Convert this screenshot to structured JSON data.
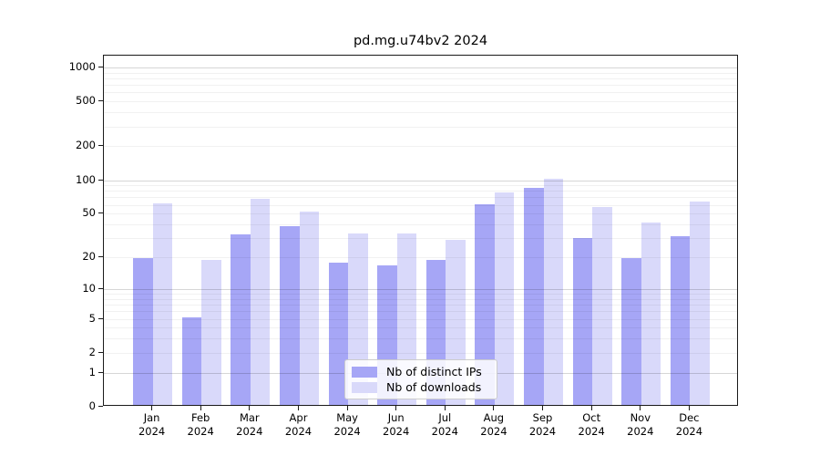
{
  "chart_data": {
    "type": "bar",
    "title": "pd.mg.u74bv2 2024",
    "categories": [
      "Jan 2024",
      "Feb 2024",
      "Mar 2024",
      "Apr 2024",
      "May 2024",
      "Jun 2024",
      "Jul 2024",
      "Aug 2024",
      "Sep 2024",
      "Oct 2024",
      "Nov 2024",
      "Dec 2024"
    ],
    "series": [
      {
        "name": "Nb of distinct IPs",
        "color": "#a6a6f6",
        "values": [
          19,
          5,
          31,
          37,
          17,
          16,
          18,
          58,
          82,
          29,
          19,
          30
        ]
      },
      {
        "name": "Nb of downloads",
        "color": "#d9d9fa",
        "values": [
          60,
          18,
          66,
          50,
          32,
          32,
          28,
          75,
          100,
          55,
          40,
          62
        ]
      }
    ],
    "xlabel": "",
    "ylabel": "",
    "yscale": "log1p",
    "y_ticks": [
      0,
      1,
      2,
      5,
      10,
      20,
      50,
      100,
      200,
      500,
      1000
    ],
    "ylim": [
      0,
      1270
    ],
    "grid": true,
    "legend_position": "lower center"
  }
}
